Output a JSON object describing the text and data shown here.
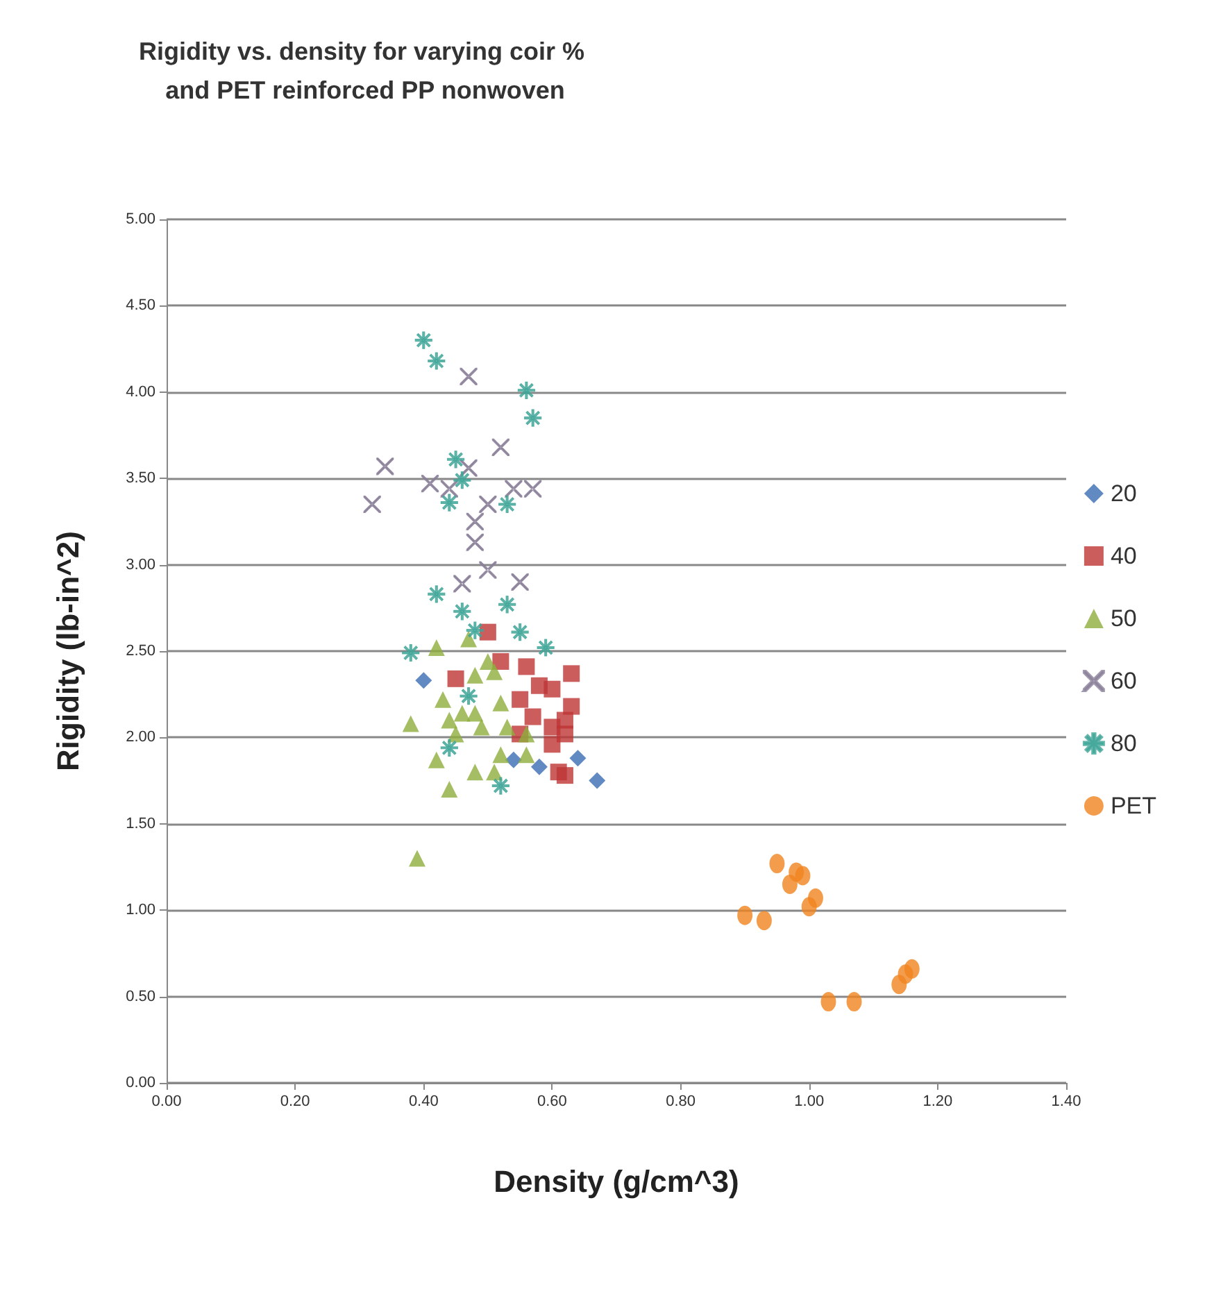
{
  "chart_data": {
    "type": "scatter",
    "title": "Rigidity vs. density for varying coir % and PET reinforced PP nonwoven",
    "xlabel": "Density (g/cm^3)",
    "ylabel": "Rigidity (lb-in^2)",
    "xlim": [
      0,
      1.4
    ],
    "xticks": [
      {
        "value": 0,
        "label": "0.00"
      },
      {
        "value": 0.2,
        "label": "0.20"
      },
      {
        "value": 0.4,
        "label": "0.40"
      },
      {
        "value": 0.6,
        "label": "0.60"
      },
      {
        "value": 0.8,
        "label": "0.80"
      },
      {
        "value": 1,
        "label": "1.00"
      },
      {
        "value": 1.2,
        "label": "1.20"
      },
      {
        "value": 1.4,
        "label": "1.40"
      }
    ],
    "ylim": [
      0,
      5
    ],
    "yticks": [
      {
        "value": 0,
        "label": "0.00"
      },
      {
        "value": 0.5,
        "label": "0.50"
      },
      {
        "value": 1,
        "label": "1.00"
      },
      {
        "value": 1.5,
        "label": "1.50"
      },
      {
        "value": 2,
        "label": "2.00"
      },
      {
        "value": 2.5,
        "label": "2.50"
      },
      {
        "value": 3,
        "label": "3.00"
      },
      {
        "value": 3.5,
        "label": "3.50"
      },
      {
        "value": 4,
        "label": "4.00"
      },
      {
        "value": 4.5,
        "label": "4.50"
      },
      {
        "value": 5,
        "label": "5.00"
      }
    ],
    "grid": "y",
    "legend": "right",
    "series": [
      {
        "name": "20",
        "color": "#3b6db3",
        "marker": "diamond",
        "x": [
          0.4,
          0.47,
          0.54,
          0.58,
          0.64,
          0.67
        ],
        "values": [
          2.33,
          null,
          1.87,
          1.83,
          1.88,
          1.75
        ]
      },
      {
        "name": "40",
        "color": "#be3535",
        "marker": "square",
        "x": [
          0.5,
          0.52,
          0.56,
          0.63,
          0.45,
          0.55,
          0.58,
          0.6,
          0.61,
          0.62,
          0.57,
          0.6,
          0.62,
          0.55,
          0.6,
          0.61,
          0.63,
          0.62
        ],
        "values": [
          2.61,
          2.44,
          2.41,
          2.37,
          2.34,
          2.22,
          2.3,
          2.28,
          null,
          2.1,
          2.12,
          2.06,
          2.02,
          2.02,
          1.96,
          1.8,
          2.18,
          1.78
        ]
      },
      {
        "name": "50",
        "color": "#8fae3c",
        "marker": "triangle",
        "x": [
          0.42,
          0.38,
          0.39,
          0.43,
          0.44,
          0.42,
          0.44,
          0.48,
          0.51,
          0.48,
          0.49,
          0.48,
          0.51,
          0.52,
          0.52,
          0.53,
          0.45,
          0.56,
          0.56,
          0.47,
          0.5,
          0.46
        ],
        "values": [
          2.52,
          2.08,
          1.3,
          2.22,
          2.1,
          1.87,
          1.7,
          2.36,
          2.38,
          2.14,
          2.06,
          1.8,
          1.8,
          1.9,
          2.2,
          2.06,
          2.02,
          2.02,
          1.9,
          2.57,
          2.44,
          2.14
        ]
      },
      {
        "name": "60",
        "color": "#8a8099",
        "marker": "cross",
        "x": [
          0.47,
          0.34,
          0.32,
          0.41,
          0.44,
          0.52,
          0.54,
          0.57,
          0.47,
          0.5,
          0.48,
          0.48,
          0.5,
          0.55,
          0.46
        ],
        "values": [
          4.09,
          3.57,
          3.35,
          3.47,
          3.44,
          3.68,
          3.44,
          3.44,
          3.56,
          3.35,
          3.25,
          3.13,
          2.97,
          2.9,
          2.89
        ]
      },
      {
        "name": "80",
        "color": "#3fa597",
        "marker": "star",
        "x": [
          0.4,
          0.42,
          0.56,
          0.57,
          0.45,
          0.46,
          0.44,
          0.53,
          0.42,
          0.46,
          0.55,
          0.59,
          0.38,
          0.52,
          0.44,
          0.47,
          0.53,
          0.48
        ],
        "values": [
          4.3,
          4.18,
          4.01,
          3.85,
          3.61,
          3.49,
          3.36,
          3.35,
          2.83,
          2.73,
          2.61,
          2.52,
          2.49,
          1.72,
          1.94,
          2.24,
          2.77,
          2.62
        ]
      },
      {
        "name": "PET",
        "color": "#f0841f",
        "marker": "circle",
        "x": [
          0.9,
          0.93,
          0.95,
          0.97,
          0.98,
          0.99,
          1.0,
          1.01,
          1.03,
          1.07,
          1.14,
          1.15,
          1.16
        ],
        "values": [
          0.97,
          0.94,
          1.27,
          1.15,
          1.22,
          1.2,
          1.02,
          1.07,
          0.47,
          0.47,
          0.57,
          0.63,
          0.66
        ]
      }
    ]
  }
}
